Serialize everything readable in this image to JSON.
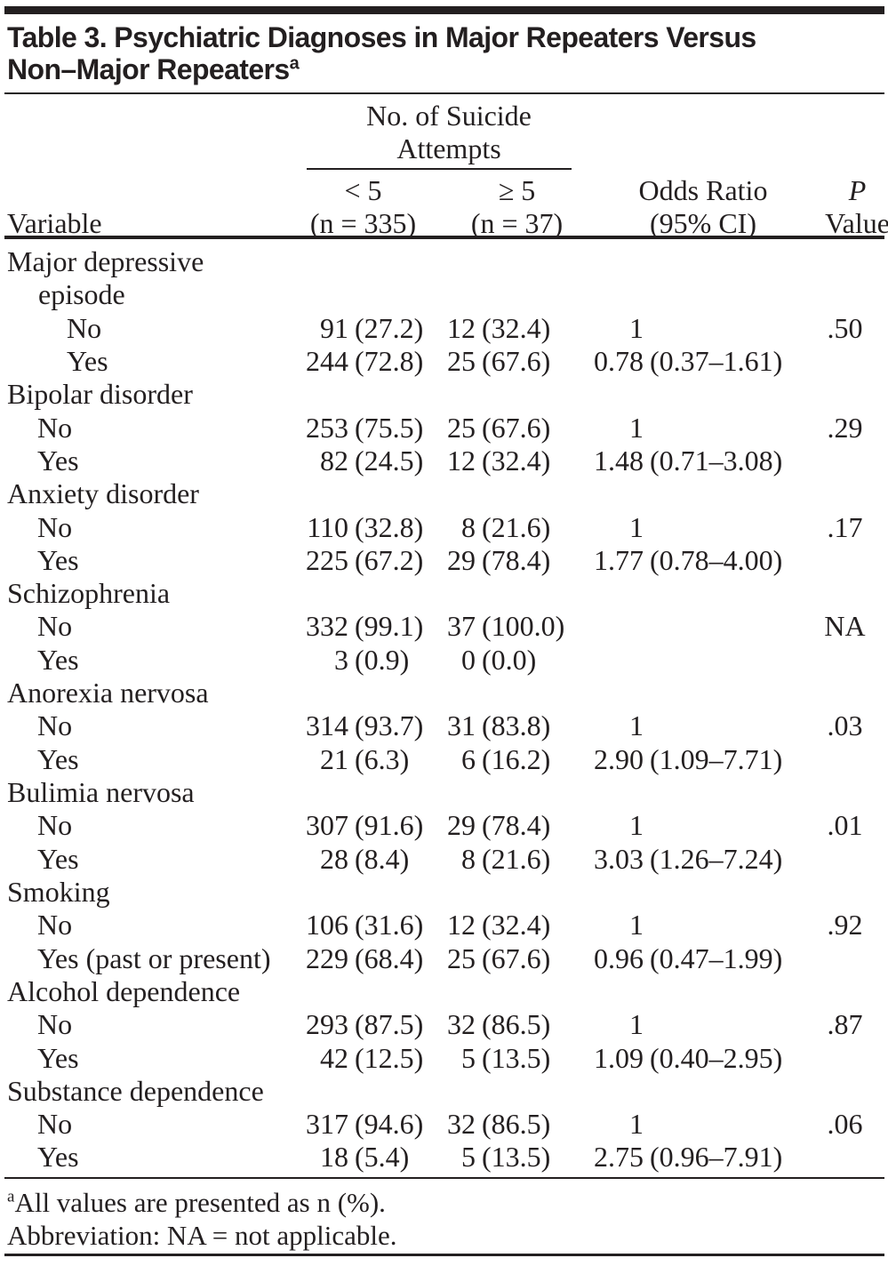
{
  "colors": {
    "text": "#231f20",
    "rule": "#231f20",
    "background": "#ffffff"
  },
  "title": {
    "line1": "Table 3. Psychiatric Diagnoses in Major Repeaters Versus",
    "line2": "Non–Major Repeaters",
    "superscript": "a"
  },
  "header": {
    "variable": "Variable",
    "spanner_line1": "No. of Suicide",
    "spanner_line2": "Attempts",
    "col_lt5_line1": "< 5",
    "col_lt5_line2": "(n = 335)",
    "col_ge5_line1": "≥ 5",
    "col_ge5_line2": "(n = 37)",
    "col_or_line1": "Odds Ratio",
    "col_or_line2": "(95% CI)",
    "col_p_line1": "P",
    "col_p_line2": "Value"
  },
  "groups": [
    {
      "label_lines": [
        "Major depressive",
        "episode"
      ],
      "rows": [
        {
          "label": "No",
          "n_lt5": "91",
          "pct_lt5": "(27.2)",
          "n_ge5": "12",
          "pct_ge5": "(32.4)",
          "or_value": "1",
          "or_ci": "",
          "p": ".50"
        },
        {
          "label": "Yes",
          "n_lt5": "244",
          "pct_lt5": "(72.8)",
          "n_ge5": "25",
          "pct_ge5": "(67.6)",
          "or_value": "0.78",
          "or_ci": "(0.37–1.61)",
          "p": ""
        }
      ]
    },
    {
      "label_lines": [
        "Bipolar disorder"
      ],
      "rows": [
        {
          "label": "No",
          "n_lt5": "253",
          "pct_lt5": "(75.5)",
          "n_ge5": "25",
          "pct_ge5": "(67.6)",
          "or_value": "1",
          "or_ci": "",
          "p": ".29"
        },
        {
          "label": "Yes",
          "n_lt5": "82",
          "pct_lt5": "(24.5)",
          "n_ge5": "12",
          "pct_ge5": "(32.4)",
          "or_value": "1.48",
          "or_ci": "(0.71–3.08)",
          "p": ""
        }
      ]
    },
    {
      "label_lines": [
        "Anxiety disorder"
      ],
      "rows": [
        {
          "label": "No",
          "n_lt5": "110",
          "pct_lt5": "(32.8)",
          "n_ge5": "8",
          "pct_ge5": "(21.6)",
          "or_value": "1",
          "or_ci": "",
          "p": ".17"
        },
        {
          "label": "Yes",
          "n_lt5": "225",
          "pct_lt5": "(67.2)",
          "n_ge5": "29",
          "pct_ge5": "(78.4)",
          "or_value": "1.77",
          "or_ci": "(0.78–4.00)",
          "p": ""
        }
      ]
    },
    {
      "label_lines": [
        "Schizophrenia"
      ],
      "rows": [
        {
          "label": "No",
          "n_lt5": "332",
          "pct_lt5": "(99.1)",
          "n_ge5": "37",
          "pct_ge5": "(100.0)",
          "or_value": "",
          "or_ci": "",
          "p": "NA"
        },
        {
          "label": "Yes",
          "n_lt5": "3",
          "pct_lt5": "(0.9)",
          "n_ge5": "0",
          "pct_ge5": "(0.0)",
          "or_value": "",
          "or_ci": "",
          "p": ""
        }
      ]
    },
    {
      "label_lines": [
        "Anorexia nervosa"
      ],
      "rows": [
        {
          "label": "No",
          "n_lt5": "314",
          "pct_lt5": "(93.7)",
          "n_ge5": "31",
          "pct_ge5": "(83.8)",
          "or_value": "1",
          "or_ci": "",
          "p": ".03"
        },
        {
          "label": "Yes",
          "n_lt5": "21",
          "pct_lt5": "(6.3)",
          "n_ge5": "6",
          "pct_ge5": "(16.2)",
          "or_value": "2.90",
          "or_ci": "(1.09–7.71)",
          "p": ""
        }
      ]
    },
    {
      "label_lines": [
        "Bulimia nervosa"
      ],
      "rows": [
        {
          "label": "No",
          "n_lt5": "307",
          "pct_lt5": "(91.6)",
          "n_ge5": "29",
          "pct_ge5": "(78.4)",
          "or_value": "1",
          "or_ci": "",
          "p": ".01"
        },
        {
          "label": "Yes",
          "n_lt5": "28",
          "pct_lt5": "(8.4)",
          "n_ge5": "8",
          "pct_ge5": "(21.6)",
          "or_value": "3.03",
          "or_ci": "(1.26–7.24)",
          "p": ""
        }
      ]
    },
    {
      "label_lines": [
        "Smoking"
      ],
      "rows": [
        {
          "label": "No",
          "n_lt5": "106",
          "pct_lt5": "(31.6)",
          "n_ge5": "12",
          "pct_ge5": "(32.4)",
          "or_value": "1",
          "or_ci": "",
          "p": ".92"
        },
        {
          "label": "Yes (past or present)",
          "n_lt5": "229",
          "pct_lt5": "(68.4)",
          "n_ge5": "25",
          "pct_ge5": "(67.6)",
          "or_value": "0.96",
          "or_ci": "(0.47–1.99)",
          "p": ""
        }
      ]
    },
    {
      "label_lines": [
        "Alcohol dependence"
      ],
      "rows": [
        {
          "label": "No",
          "n_lt5": "293",
          "pct_lt5": "(87.5)",
          "n_ge5": "32",
          "pct_ge5": "(86.5)",
          "or_value": "1",
          "or_ci": "",
          "p": ".87"
        },
        {
          "label": "Yes",
          "n_lt5": "42",
          "pct_lt5": "(12.5)",
          "n_ge5": "5",
          "pct_ge5": "(13.5)",
          "or_value": "1.09",
          "or_ci": "(0.40–2.95)",
          "p": ""
        }
      ]
    },
    {
      "label_lines": [
        "Substance dependence"
      ],
      "rows": [
        {
          "label": "No",
          "n_lt5": "317",
          "pct_lt5": "(94.6)",
          "n_ge5": "32",
          "pct_ge5": "(86.5)",
          "or_value": "1",
          "or_ci": "",
          "p": ".06"
        },
        {
          "label": "Yes",
          "n_lt5": "18",
          "pct_lt5": "(5.4)",
          "n_ge5": "5",
          "pct_ge5": "(13.5)",
          "or_value": "2.75",
          "or_ci": "(0.96–7.91)",
          "p": ""
        }
      ]
    }
  ],
  "footnotes": {
    "note1_sup": "a",
    "note1": "All values are presented as n (%).",
    "note2": "Abbreviation: NA = not applicable."
  }
}
